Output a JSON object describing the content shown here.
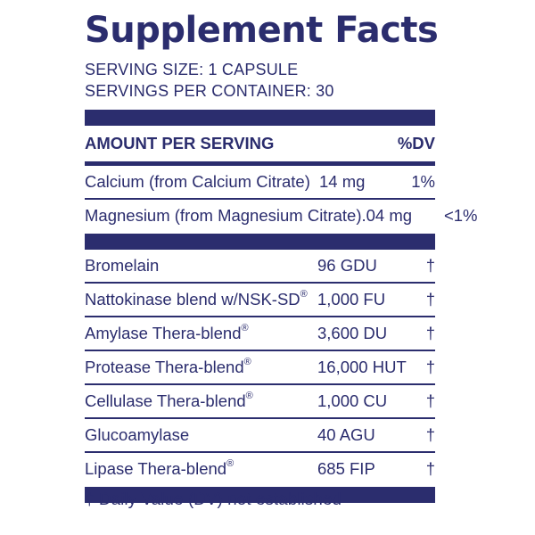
{
  "label": {
    "title": "Supplement Facts",
    "serving_size": "SERVING SIZE: 1 CAPSULE",
    "servings_per_container": "SERVINGS PER CONTAINER: 30",
    "header": {
      "amount": "AMOUNT PER SERVING",
      "dv": "%DV"
    },
    "vitamins": [
      {
        "name": "Calcium (from Calcium Citrate)",
        "amount": "14 mg",
        "dv": "1%"
      },
      {
        "name": "Magnesium (from Magnesium Citrate)",
        "amount": ".04 mg",
        "dv": "<1%"
      }
    ],
    "enzymes": [
      {
        "name": "Bromelain",
        "reg": "",
        "amount": "96 GDU",
        "dv": "†"
      },
      {
        "name": "Nattokinase blend w/NSK-SD",
        "reg": "®",
        "amount": "1,000 FU",
        "dv": "†"
      },
      {
        "name": "Amylase Thera-blend",
        "reg": "®",
        "amount": "3,600 DU",
        "dv": "†"
      },
      {
        "name": "Protease Thera-blend",
        "reg": "®",
        "amount": "16,000 HUT",
        "dv": "†"
      },
      {
        "name": "Cellulase Thera-blend",
        "reg": "®",
        "amount": "1,000 CU",
        "dv": "†"
      },
      {
        "name": "Glucoamylase",
        "reg": "",
        "amount": "40 AGU",
        "dv": "†"
      },
      {
        "name": "Lipase Thera-blend",
        "reg": "®",
        "amount": "685 FIP",
        "dv": "†"
      }
    ],
    "footnote": "† Daily Value (DV) not established"
  },
  "colors": {
    "ink": "#2b2d6e",
    "background": "#ffffff"
  }
}
